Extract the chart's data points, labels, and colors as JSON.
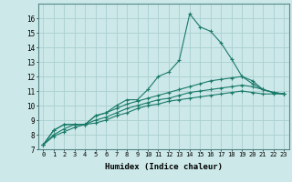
{
  "xlabel": "Humidex (Indice chaleur)",
  "ylabel": "",
  "background_color": "#cce8e8",
  "grid_color": "#aad0d0",
  "line_color": "#1a7a6a",
  "xlim": [
    -0.5,
    23.5
  ],
  "ylim": [
    7,
    17
  ],
  "xticks": [
    0,
    1,
    2,
    3,
    4,
    5,
    6,
    7,
    8,
    9,
    10,
    11,
    12,
    13,
    14,
    15,
    16,
    17,
    18,
    19,
    20,
    21,
    22,
    23
  ],
  "yticks": [
    7,
    8,
    9,
    10,
    11,
    12,
    13,
    14,
    15,
    16
  ],
  "series": [
    [
      7.3,
      8.3,
      8.7,
      8.7,
      8.7,
      9.3,
      9.5,
      10.0,
      10.4,
      10.4,
      11.1,
      12.0,
      12.3,
      13.1,
      16.3,
      15.4,
      15.1,
      14.3,
      13.2,
      12.0,
      11.7,
      11.1,
      10.9,
      10.8
    ],
    [
      7.3,
      8.3,
      8.7,
      8.7,
      8.7,
      9.3,
      9.5,
      9.8,
      10.1,
      10.3,
      10.5,
      10.7,
      10.9,
      11.1,
      11.3,
      11.5,
      11.7,
      11.8,
      11.9,
      12.0,
      11.5,
      11.1,
      10.9,
      10.8
    ],
    [
      7.3,
      8.0,
      8.4,
      8.7,
      8.7,
      9.0,
      9.2,
      9.5,
      9.8,
      10.0,
      10.2,
      10.4,
      10.5,
      10.7,
      10.9,
      11.0,
      11.1,
      11.2,
      11.3,
      11.4,
      11.3,
      11.1,
      10.9,
      10.8
    ],
    [
      7.3,
      7.9,
      8.2,
      8.5,
      8.7,
      8.8,
      9.0,
      9.3,
      9.5,
      9.8,
      10.0,
      10.1,
      10.3,
      10.4,
      10.5,
      10.6,
      10.7,
      10.8,
      10.9,
      11.0,
      10.9,
      10.8,
      10.8,
      10.8
    ]
  ],
  "xlabel_fontsize": 6.5,
  "xtick_fontsize": 5.0,
  "ytick_fontsize": 5.5
}
